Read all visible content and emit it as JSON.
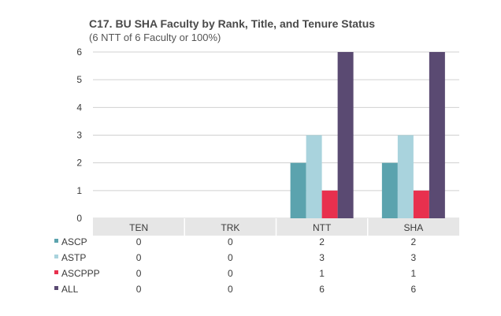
{
  "title": "C17. BU SHA Faculty by Rank, Title, and Tenure Status",
  "subtitle": "(6 NTT of 6 Faculty or 100%)",
  "chart_data": {
    "type": "bar",
    "title": "C17. BU SHA Faculty by Rank, Title, and Tenure Status",
    "subtitle": "(6 NTT of 6 Faculty or 100%)",
    "categories": [
      "TEN",
      "TRK",
      "NTT",
      "SHA"
    ],
    "ylim": [
      0,
      6
    ],
    "yticks": [
      0,
      1,
      2,
      3,
      4,
      5,
      6
    ],
    "grid": true,
    "legend": "table-bottom",
    "series": [
      {
        "name": "ASCP",
        "color": "#5ba3ae",
        "values": [
          0,
          0,
          2,
          2
        ]
      },
      {
        "name": "ASTP",
        "color": "#a9d3dd",
        "values": [
          0,
          0,
          3,
          3
        ]
      },
      {
        "name": "ASCPPP",
        "color": "#e8304e",
        "values": [
          0,
          0,
          1,
          1
        ]
      },
      {
        "name": "ALL",
        "color": "#5a4a72",
        "values": [
          0,
          0,
          6,
          6
        ]
      }
    ]
  }
}
